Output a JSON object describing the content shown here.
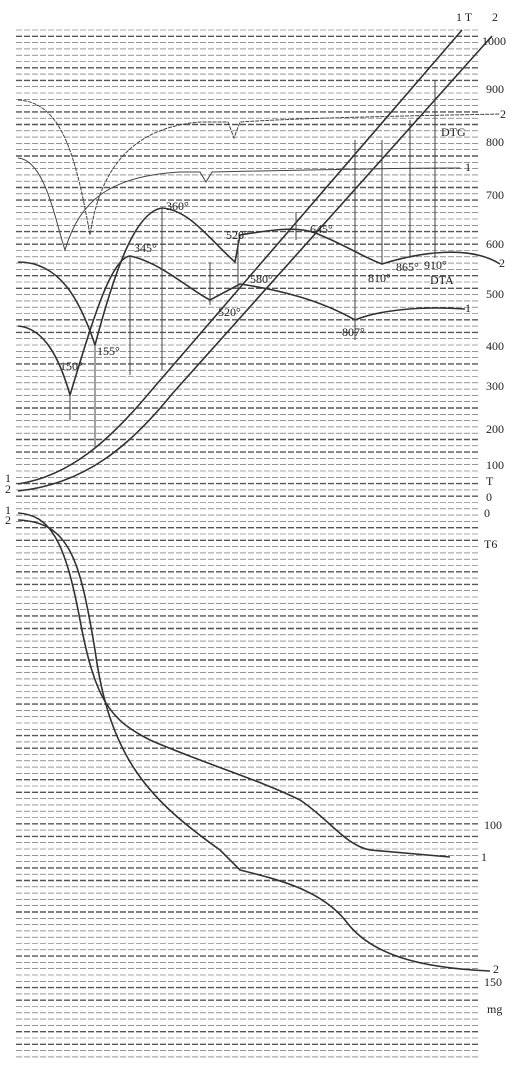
{
  "temperature_scale": {
    "top_labels": [
      "1 T",
      "2"
    ],
    "ticks": [
      1000,
      900,
      800,
      700,
      600,
      500,
      400,
      300,
      200,
      100,
      0
    ],
    "axis_label": "T"
  },
  "dtg": {
    "label": "DTG",
    "curve_labels": [
      "2",
      "1"
    ]
  },
  "dta": {
    "label": "DTA",
    "curve_labels": [
      "2",
      "1"
    ]
  },
  "peaks": [
    "360°",
    "345°",
    "520°",
    "645°",
    "580°",
    "520°",
    "810°",
    "865°",
    "910°",
    "807°",
    "155°",
    "150°"
  ],
  "t_curve_labels": [
    "1",
    "2"
  ],
  "tg": {
    "curve_labels_left": [
      "1",
      "2"
    ],
    "ticks": [
      0,
      100,
      150
    ],
    "axis_label": "T6",
    "unit": "mg",
    "curve_labels_right": [
      "1",
      "2"
    ]
  }
}
